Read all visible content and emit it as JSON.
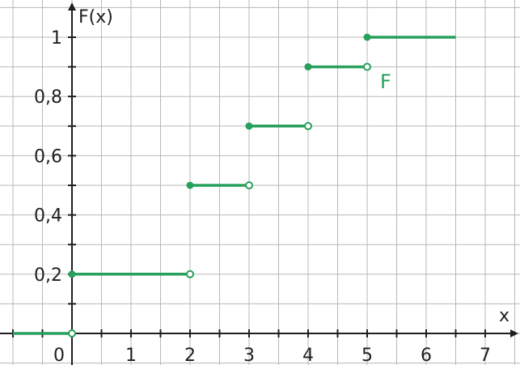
{
  "chart_data": {
    "type": "line",
    "subtype": "step-function",
    "ylabel": "F(x)",
    "xlabel": "x",
    "xlim": [
      -1.0,
      7.5
    ],
    "ylim": [
      -0.1,
      1.1
    ],
    "grid": true,
    "x_ticks": [
      {
        "value": 0,
        "label": "0"
      },
      {
        "value": 1,
        "label": "1"
      },
      {
        "value": 2,
        "label": "2"
      },
      {
        "value": 3,
        "label": "3"
      },
      {
        "value": 4,
        "label": "4"
      },
      {
        "value": 5,
        "label": "5"
      },
      {
        "value": 6,
        "label": "6"
      },
      {
        "value": 7,
        "label": "7"
      }
    ],
    "y_ticks": [
      {
        "value": 0.2,
        "label": "0,2"
      },
      {
        "value": 0.4,
        "label": "0,4"
      },
      {
        "value": 0.6,
        "label": "0,6"
      },
      {
        "value": 0.8,
        "label": "0,8"
      },
      {
        "value": 1,
        "label": "1"
      }
    ],
    "series": [
      {
        "name": "F",
        "color": "#27a05b",
        "steps": [
          {
            "x_start": -1.0,
            "x_end": 0,
            "y": 0,
            "start_closed": false,
            "end_open": true
          },
          {
            "x_start": 0,
            "x_end": 2,
            "y": 0.2,
            "start_closed": true,
            "end_open": true
          },
          {
            "x_start": 2,
            "x_end": 3,
            "y": 0.5,
            "start_closed": true,
            "end_open": true
          },
          {
            "x_start": 3,
            "x_end": 4,
            "y": 0.7,
            "start_closed": true,
            "end_open": true
          },
          {
            "x_start": 4,
            "x_end": 5,
            "y": 0.9,
            "start_closed": true,
            "end_open": true
          },
          {
            "x_start": 5,
            "x_end": 6.5,
            "y": 1,
            "start_closed": true,
            "end_open": false
          }
        ]
      }
    ],
    "colors": {
      "grid": "#b8b8b8",
      "axis": "#1f1f1f",
      "series": "#27a05b"
    }
  }
}
